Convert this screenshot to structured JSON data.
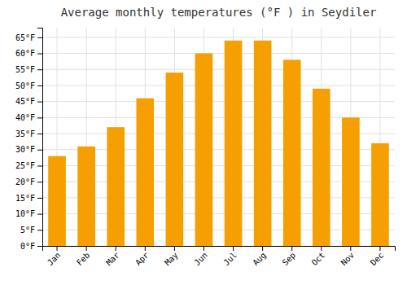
{
  "chart_data": {
    "type": "bar",
    "title": "Average monthly temperatures (°F ) in Seydiler",
    "categories": [
      "Jan",
      "Feb",
      "Mar",
      "Apr",
      "May",
      "Jun",
      "Jul",
      "Aug",
      "Sep",
      "Oct",
      "Nov",
      "Dec"
    ],
    "values": [
      28,
      31,
      37,
      46,
      54,
      60,
      64,
      64,
      58,
      49,
      40,
      32
    ],
    "color": "#F5A000",
    "ylim": [
      0,
      68
    ],
    "yticks": [
      {
        "value": 0,
        "label": "0°F"
      },
      {
        "value": 5,
        "label": "5°F"
      },
      {
        "value": 10,
        "label": "10°F"
      },
      {
        "value": 15,
        "label": "15°F"
      },
      {
        "value": 20,
        "label": "20°F"
      },
      {
        "value": 25,
        "label": "25°F"
      },
      {
        "value": 30,
        "label": "30°F"
      },
      {
        "value": 35,
        "label": "35°F"
      },
      {
        "value": 40,
        "label": "40°F"
      },
      {
        "value": 45,
        "label": "45°F"
      },
      {
        "value": 50,
        "label": "50°F"
      },
      {
        "value": 55,
        "label": "55°F"
      },
      {
        "value": 60,
        "label": "60°F"
      },
      {
        "value": 65,
        "label": "65°F"
      }
    ],
    "grid": true
  }
}
